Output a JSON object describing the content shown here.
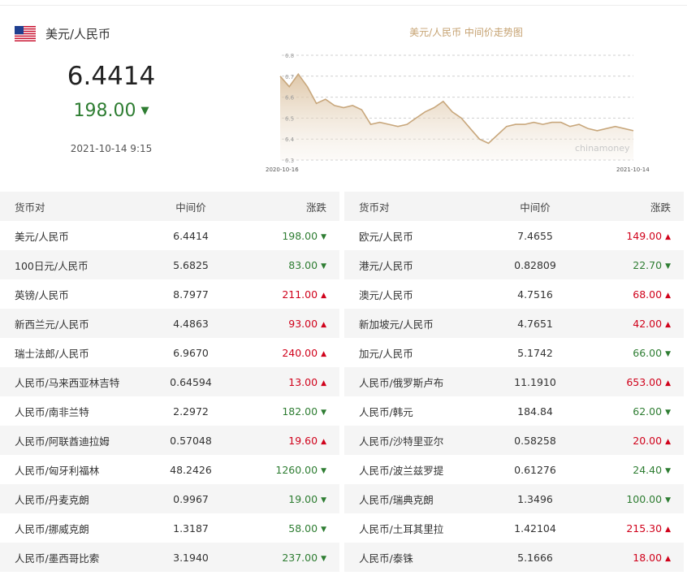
{
  "header": {
    "pair": "美元/人民币",
    "rate": "6.4414",
    "change": "198.00",
    "direction": "down",
    "timestamp": "2021-10-14 9:15"
  },
  "chart": {
    "title": "美元/人民币 中间价走势图",
    "watermark": "chinamoney",
    "x_start_label": "2020-10-16",
    "x_end_label": "2021-10-14",
    "ytick_labels": [
      "6.8",
      "6.7",
      "6.6",
      "6.5",
      "6.4",
      "6.3"
    ],
    "line_color": "#c8a77c",
    "chart_data": {
      "type": "area",
      "x_range": [
        "2020-10-16",
        "2021-10-14"
      ],
      "ylim": [
        6.3,
        6.8
      ],
      "y": [
        6.7,
        6.65,
        6.71,
        6.65,
        6.57,
        6.59,
        6.56,
        6.55,
        6.56,
        6.54,
        6.47,
        6.48,
        6.47,
        6.46,
        6.47,
        6.5,
        6.53,
        6.55,
        6.58,
        6.53,
        6.5,
        6.45,
        6.4,
        6.38,
        6.42,
        6.46,
        6.47,
        6.47,
        6.48,
        6.47,
        6.48,
        6.48,
        6.46,
        6.47,
        6.45,
        6.44,
        6.45,
        6.46,
        6.45,
        6.44
      ]
    }
  },
  "table_headers": {
    "pair": "货币对",
    "mid": "中间价",
    "change": "涨跌"
  },
  "left_rows": [
    {
      "pair": "美元/人民币",
      "mid": "6.4414",
      "change": "198.00",
      "dir": "down"
    },
    {
      "pair": "100日元/人民币",
      "mid": "5.6825",
      "change": "83.00",
      "dir": "down"
    },
    {
      "pair": "英镑/人民币",
      "mid": "8.7977",
      "change": "211.00",
      "dir": "up"
    },
    {
      "pair": "新西兰元/人民币",
      "mid": "4.4863",
      "change": "93.00",
      "dir": "up"
    },
    {
      "pair": "瑞士法郎/人民币",
      "mid": "6.9670",
      "change": "240.00",
      "dir": "up"
    },
    {
      "pair": "人民币/马来西亚林吉特",
      "mid": "0.64594",
      "change": "13.00",
      "dir": "up"
    },
    {
      "pair": "人民币/南非兰特",
      "mid": "2.2972",
      "change": "182.00",
      "dir": "down"
    },
    {
      "pair": "人民币/阿联酋迪拉姆",
      "mid": "0.57048",
      "change": "19.60",
      "dir": "up"
    },
    {
      "pair": "人民币/匈牙利福林",
      "mid": "48.2426",
      "change": "1260.00",
      "dir": "down"
    },
    {
      "pair": "人民币/丹麦克朗",
      "mid": "0.9967",
      "change": "19.00",
      "dir": "down"
    },
    {
      "pair": "人民币/挪威克朗",
      "mid": "1.3187",
      "change": "58.00",
      "dir": "down"
    },
    {
      "pair": "人民币/墨西哥比索",
      "mid": "3.1940",
      "change": "237.00",
      "dir": "down"
    }
  ],
  "right_rows": [
    {
      "pair": "欧元/人民币",
      "mid": "7.4655",
      "change": "149.00",
      "dir": "up"
    },
    {
      "pair": "港元/人民币",
      "mid": "0.82809",
      "change": "22.70",
      "dir": "down"
    },
    {
      "pair": "澳元/人民币",
      "mid": "4.7516",
      "change": "68.00",
      "dir": "up"
    },
    {
      "pair": "新加坡元/人民币",
      "mid": "4.7651",
      "change": "42.00",
      "dir": "up"
    },
    {
      "pair": "加元/人民币",
      "mid": "5.1742",
      "change": "66.00",
      "dir": "down"
    },
    {
      "pair": "人民币/俄罗斯卢布",
      "mid": "11.1910",
      "change": "653.00",
      "dir": "up"
    },
    {
      "pair": "人民币/韩元",
      "mid": "184.84",
      "change": "62.00",
      "dir": "down"
    },
    {
      "pair": "人民币/沙特里亚尔",
      "mid": "0.58258",
      "change": "20.00",
      "dir": "up"
    },
    {
      "pair": "人民币/波兰兹罗提",
      "mid": "0.61276",
      "change": "24.40",
      "dir": "down"
    },
    {
      "pair": "人民币/瑞典克朗",
      "mid": "1.3496",
      "change": "100.00",
      "dir": "down"
    },
    {
      "pair": "人民币/土耳其里拉",
      "mid": "1.42104",
      "change": "215.30",
      "dir": "up"
    },
    {
      "pair": "人民币/泰铢",
      "mid": "5.1666",
      "change": "18.00",
      "dir": "up"
    }
  ],
  "colors": {
    "up": "#d0021b",
    "down": "#2e7d32"
  }
}
